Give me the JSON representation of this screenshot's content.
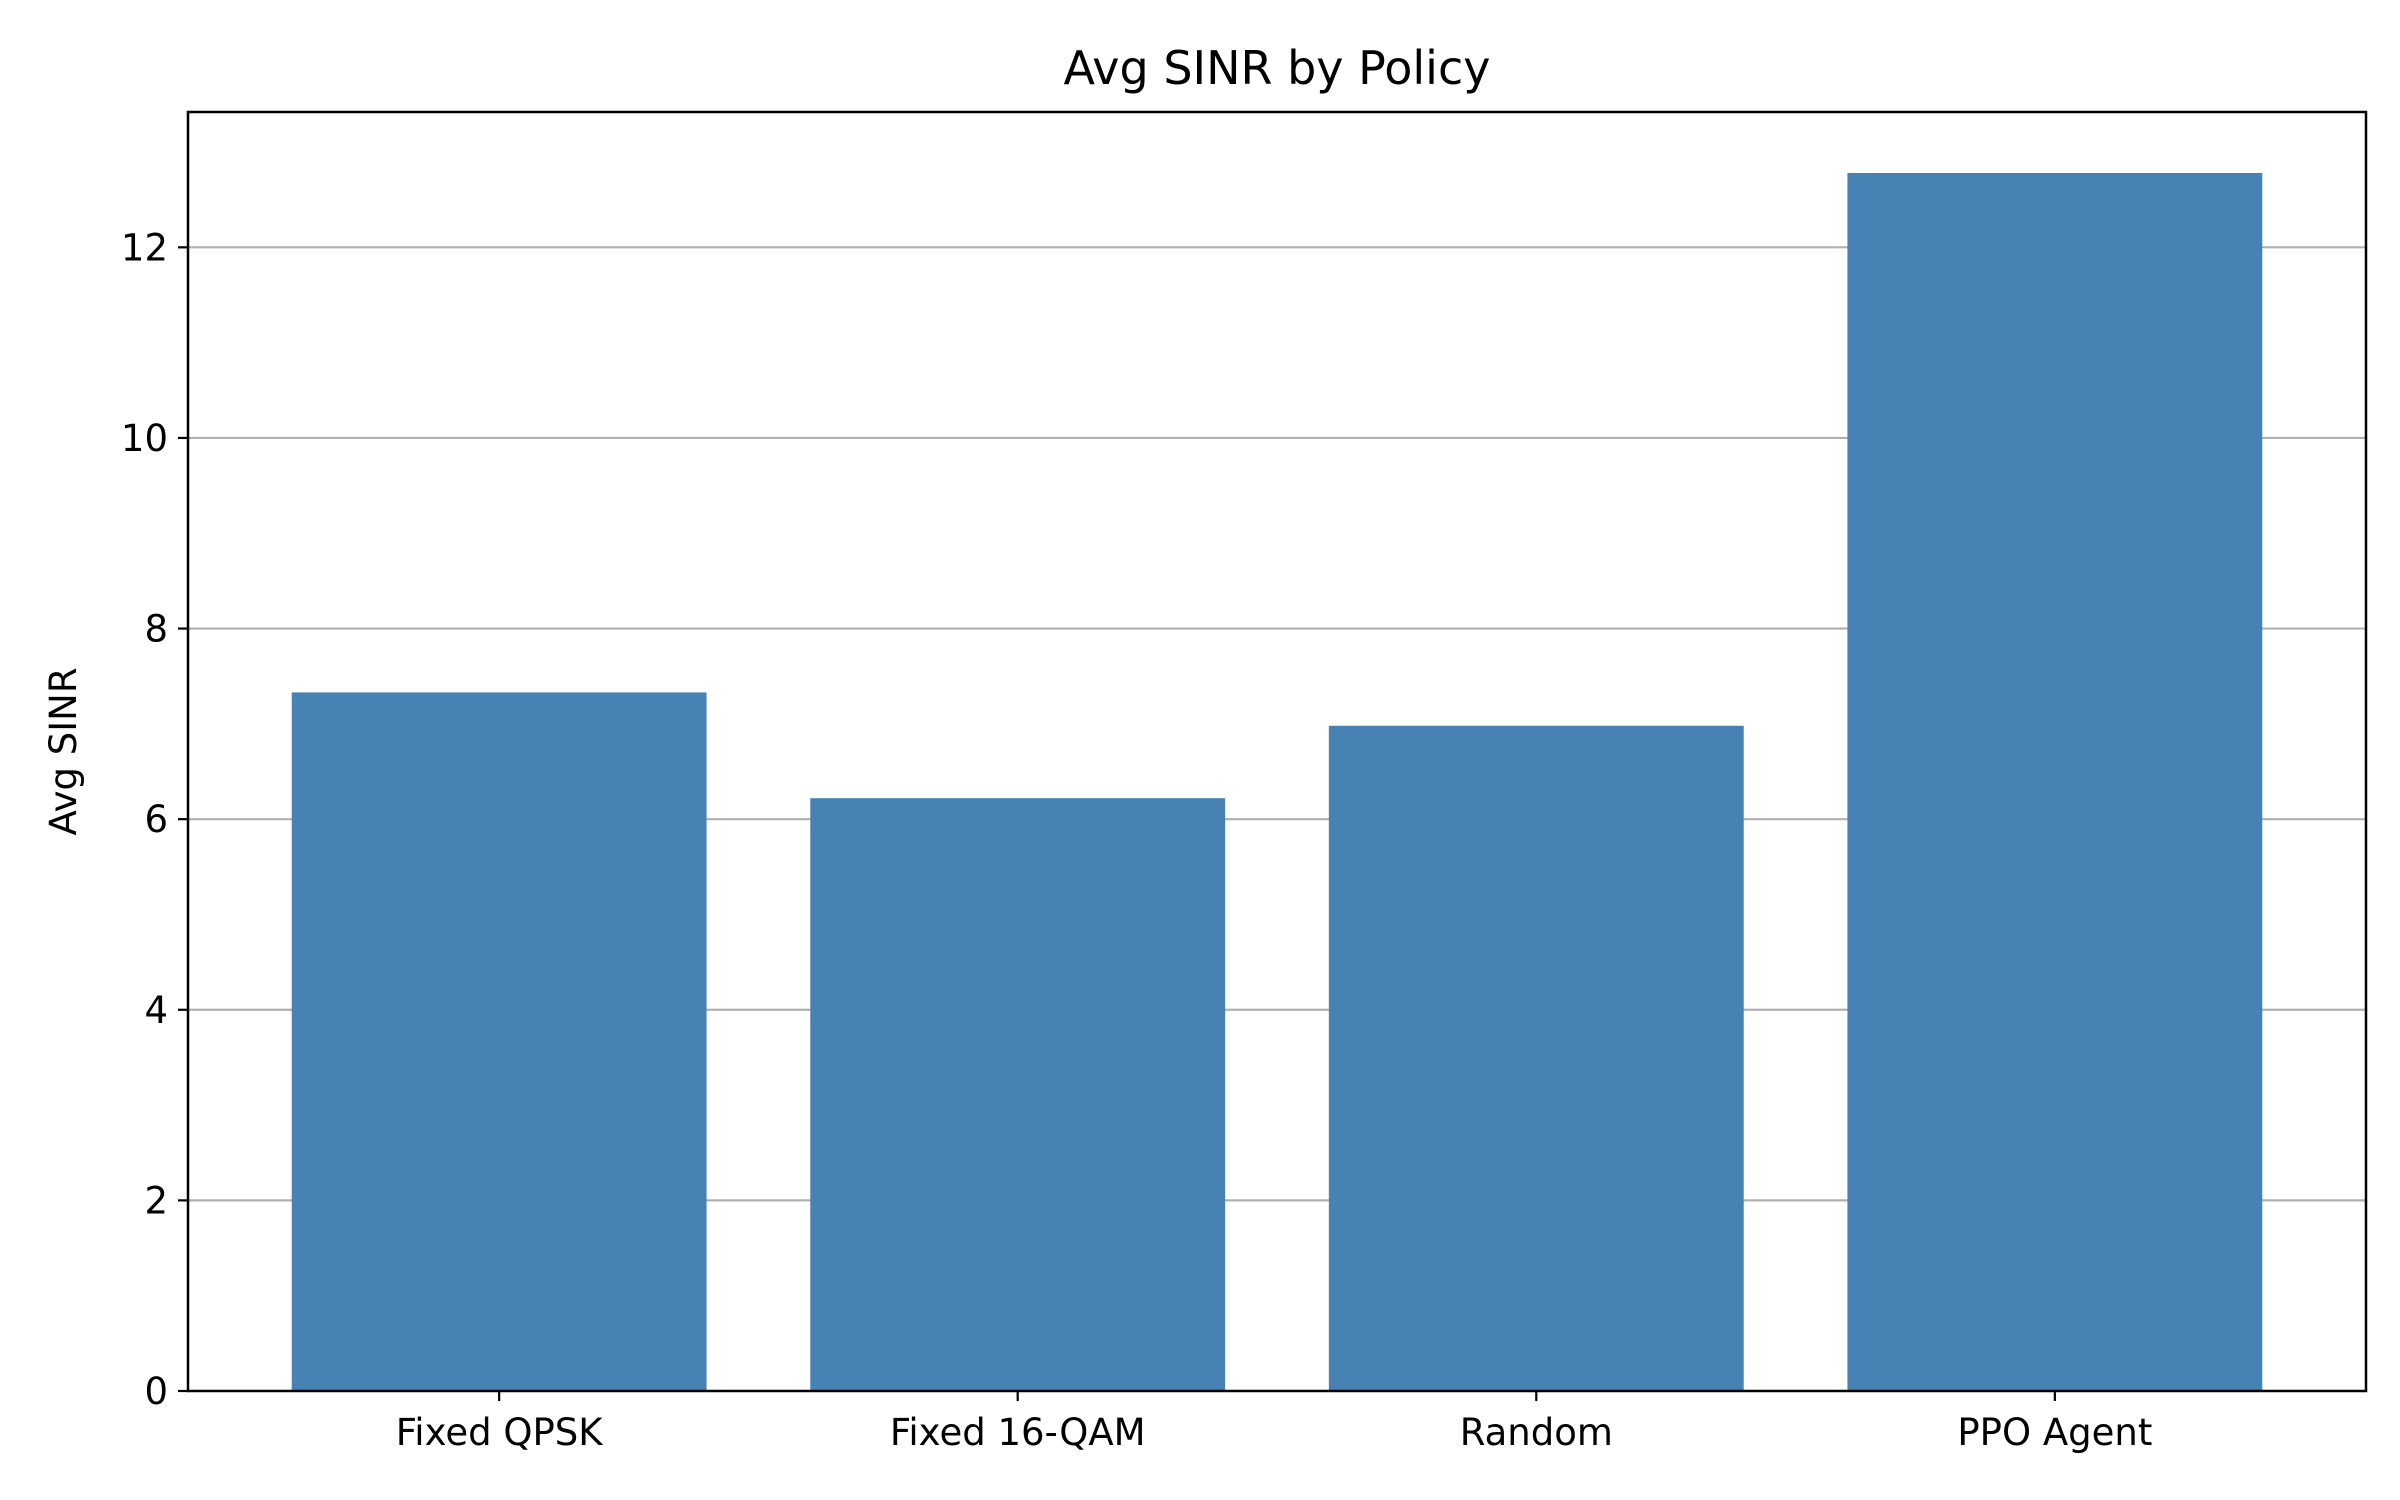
{
  "chart_data": {
    "type": "bar",
    "title": "Avg SINR by Policy",
    "xlabel": "",
    "ylabel": "Avg SINR",
    "categories": [
      "Fixed QPSK",
      "Fixed 16-QAM",
      "Random",
      "PPO Agent"
    ],
    "values": [
      7.33,
      6.22,
      6.98,
      12.78
    ],
    "ylim": [
      0,
      13.42
    ],
    "yticks": [
      0,
      2,
      4,
      6,
      8,
      10,
      12
    ],
    "bar_color": "#4682b4",
    "grid": "y",
    "legend": "none"
  }
}
